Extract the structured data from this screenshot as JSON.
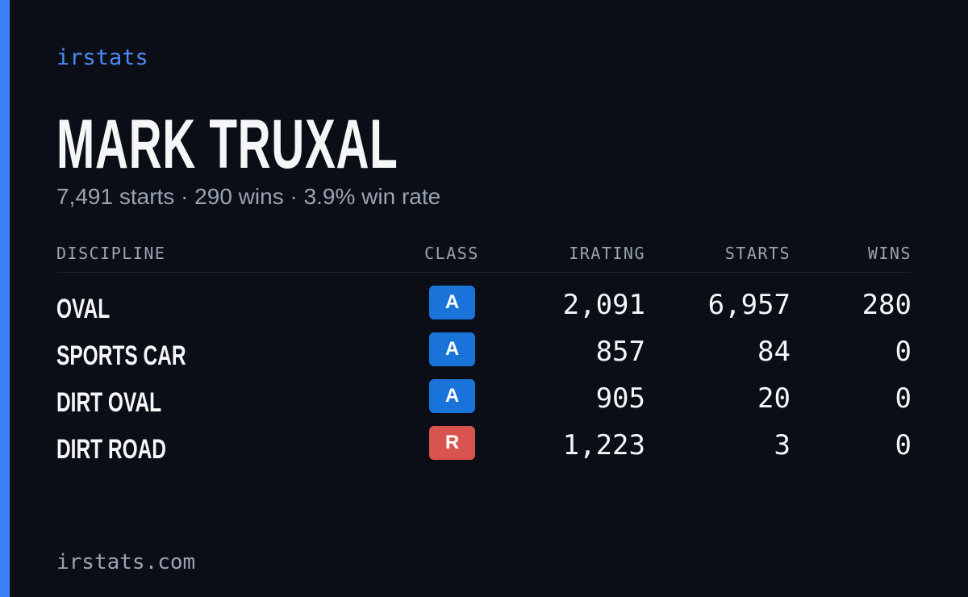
{
  "header": {
    "brand": "irstats",
    "name": "MARK TRUXAL",
    "summary": "7,491 starts · 290 wins · 3.9% win rate"
  },
  "table": {
    "columns": [
      "DISCIPLINE",
      "CLASS",
      "IRATING",
      "STARTS",
      "WINS"
    ],
    "rows": [
      {
        "discipline": "OVAL",
        "class": "A",
        "class_color": "#1a73d9",
        "irating": "2,091",
        "starts": "6,957",
        "wins": "280"
      },
      {
        "discipline": "SPORTS CAR",
        "class": "A",
        "class_color": "#1a73d9",
        "irating": "857",
        "starts": "84",
        "wins": "0"
      },
      {
        "discipline": "DIRT OVAL",
        "class": "A",
        "class_color": "#1a73d9",
        "irating": "905",
        "starts": "20",
        "wins": "0"
      },
      {
        "discipline": "DIRT ROAD",
        "class": "R",
        "class_color": "#d9534f",
        "irating": "1,223",
        "starts": "3",
        "wins": "0"
      }
    ]
  },
  "footer": {
    "url": "irstats.com"
  }
}
